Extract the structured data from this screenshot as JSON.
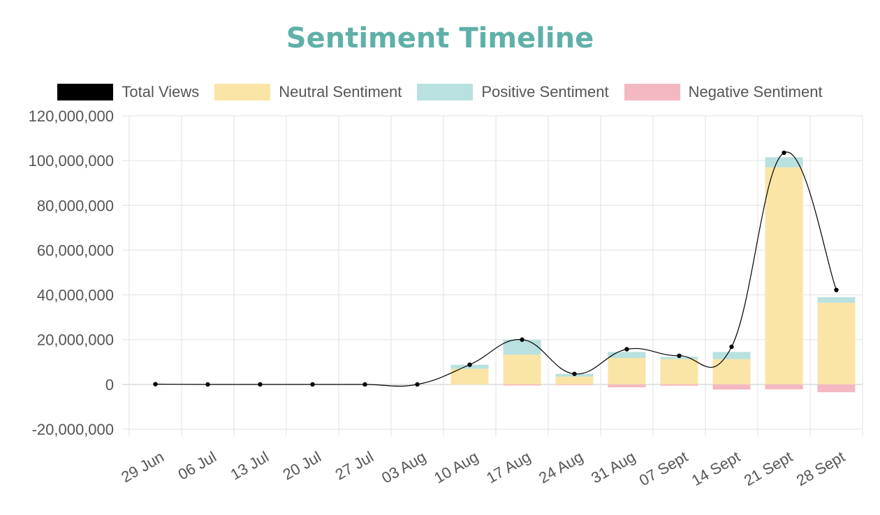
{
  "chart_data": {
    "type": "bar",
    "title": "Sentiment Timeline",
    "categories": [
      "29 Jun",
      "06 Jul",
      "13 Jul",
      "20 Jul",
      "27 Jul",
      "03 Aug",
      "10 Aug",
      "17 Aug",
      "24 Aug",
      "31 Aug",
      "07 Sept",
      "14 Sept",
      "21 Sept",
      "28 Sept"
    ],
    "ylim": [
      -20000000,
      120000000
    ],
    "yticks": [
      -20000000,
      0,
      20000000,
      40000000,
      60000000,
      80000000,
      100000000,
      120000000
    ],
    "ytick_labels": [
      "-20,000,000",
      "0",
      "20,000,000",
      "40,000,000",
      "60,000,000",
      "80,000,000",
      "100,000,000",
      "120,000,000"
    ],
    "legend": [
      {
        "label": "Total Views",
        "color": "#000000"
      },
      {
        "label": "Neutral Sentiment",
        "color": "#fae5a7"
      },
      {
        "label": "Positive Sentiment",
        "color": "#b9e1df"
      },
      {
        "label": "Negative Sentiment",
        "color": "#f4b8c3"
      }
    ],
    "series": [
      {
        "name": "Total Views",
        "type": "line",
        "color": "#000000",
        "values": [
          100000,
          0,
          0,
          0,
          0,
          0,
          8800000,
          20000000,
          4700000,
          15700000,
          12800000,
          16800000,
          103500000,
          42200000
        ]
      },
      {
        "name": "Neutral Sentiment",
        "type": "bar",
        "stack": "pos",
        "color": "#fae5a7",
        "values": [
          0,
          0,
          0,
          0,
          0,
          0,
          7000000,
          13300000,
          3500000,
          11800000,
          11300000,
          11300000,
          97000000,
          36500000
        ]
      },
      {
        "name": "Positive Sentiment",
        "type": "bar",
        "stack": "pos",
        "color": "#b9e1df",
        "values": [
          0,
          0,
          0,
          0,
          0,
          0,
          1800000,
          6700000,
          1200000,
          2700000,
          1000000,
          3200000,
          4500000,
          2500000
        ]
      },
      {
        "name": "Negative Sentiment",
        "type": "bar",
        "stack": "neg",
        "color": "#f4b8c3",
        "values": [
          0,
          0,
          0,
          0,
          0,
          0,
          0,
          -500000,
          -300000,
          -1300000,
          -600000,
          -2300000,
          -2200000,
          -3500000
        ]
      }
    ]
  }
}
